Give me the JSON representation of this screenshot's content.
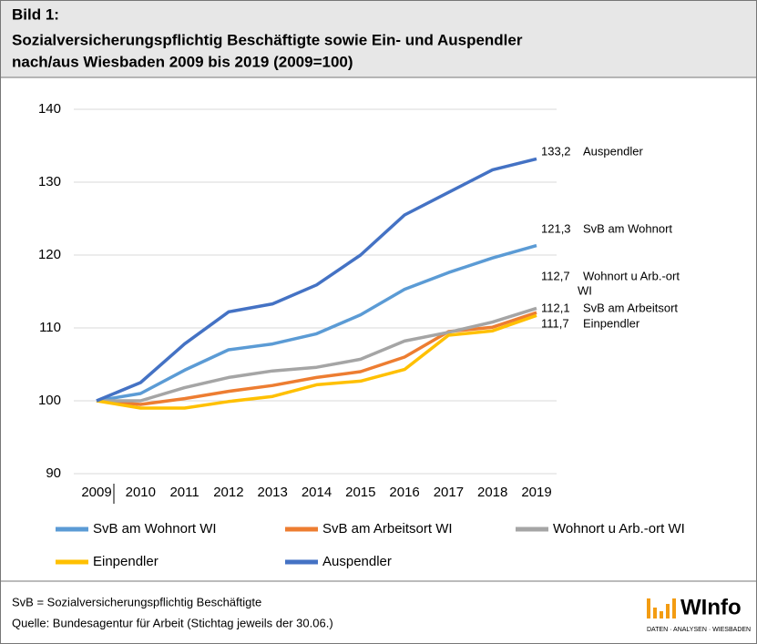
{
  "chart_data": {
    "type": "line",
    "title_lines": [
      "Bild 1:",
      "Sozialversicherungspflichtig Beschäftigte sowie Ein- und Auspendler",
      "nach/aus Wiesbaden 2009 bis 2019 (2009=100)"
    ],
    "categories": [
      "2009",
      "2010",
      "2011",
      "2012",
      "2013",
      "2014",
      "2015",
      "2016",
      "2017",
      "2018",
      "2019"
    ],
    "ylim": [
      90,
      140
    ],
    "yticks": [
      90,
      100,
      110,
      120,
      130,
      140
    ],
    "grid": true,
    "series": [
      {
        "name": "SvB am Wohnort WI",
        "color": "#5b9bd5",
        "end_name": [
          "SvB am Wohnort"
        ],
        "values": [
          100,
          101,
          104.2,
          107,
          107.8,
          109.2,
          111.8,
          115.3,
          117.6,
          119.6,
          121.3
        ],
        "value_labels": [
          null,
          null,
          null,
          null,
          null,
          null,
          null,
          null,
          null,
          null,
          "121,3"
        ]
      },
      {
        "name": "SvB am Arbeitsort WI",
        "color": "#ed7d31",
        "end_name": [
          "SvB am Arbeitsort"
        ],
        "values": [
          100,
          99.5,
          100.3,
          101.3,
          102.1,
          103.2,
          104,
          106,
          109.5,
          110.1,
          112.1
        ],
        "value_labels": [
          null,
          null,
          null,
          null,
          null,
          null,
          null,
          null,
          null,
          null,
          "112,1"
        ]
      },
      {
        "name": "Wohnort u Arb.-ort WI",
        "color": "#a5a5a5",
        "end_name": [
          "Wohnort u Arb.-ort",
          "WI"
        ],
        "values": [
          100,
          100,
          101.8,
          103.2,
          104.1,
          104.6,
          105.7,
          108.2,
          109.4,
          110.8,
          112.7
        ],
        "value_labels": [
          null,
          null,
          null,
          null,
          null,
          null,
          null,
          null,
          null,
          null,
          "112,7"
        ]
      },
      {
        "name": "Einpendler",
        "color": "#ffc000",
        "end_name": [
          "Einpendler"
        ],
        "values": [
          100,
          99,
          99,
          99.9,
          100.6,
          102.2,
          102.7,
          104.3,
          109,
          109.6,
          111.7
        ],
        "value_labels": [
          null,
          null,
          null,
          null,
          null,
          null,
          null,
          null,
          null,
          null,
          "111,7"
        ]
      },
      {
        "name": "Auspendler",
        "color": "#4472c4",
        "end_name": [
          "Auspendler"
        ],
        "values": [
          100,
          102.5,
          107.8,
          112.2,
          113.3,
          115.9,
          120,
          125.5,
          128.6,
          131.7,
          133.2
        ],
        "value_labels": [
          null,
          null,
          null,
          null,
          null,
          null,
          null,
          null,
          null,
          null,
          "133,2"
        ]
      }
    ],
    "footnote": "SvB = Sozialversicherungspflichtig Beschäftigte",
    "source": "Quelle:  Bundesagentur für Arbeit (Stichtag jeweils der 30.06.)",
    "logo": {
      "name": "WInfo",
      "tagline": "DATEN · ANALYSEN · WIESBADEN"
    }
  }
}
